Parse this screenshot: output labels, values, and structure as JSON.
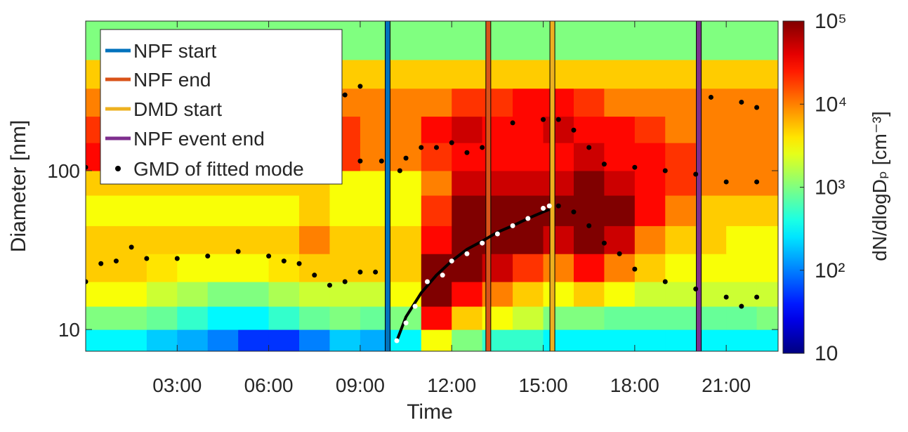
{
  "chart_data": {
    "type": "heatmap",
    "x_label": "Time",
    "y_label": "Diameter [nm]",
    "xlim": [
      0,
      22.7
    ],
    "xticks": [
      {
        "value": 3,
        "label": "03:00"
      },
      {
        "value": 6,
        "label": "06:00"
      },
      {
        "value": 9,
        "label": "09:00"
      },
      {
        "value": 12,
        "label": "12:00"
      },
      {
        "value": 15,
        "label": "15:00"
      },
      {
        "value": 18,
        "label": "18:00"
      },
      {
        "value": 21,
        "label": "21:00"
      }
    ],
    "ylim": [
      7.3,
      875
    ],
    "yscale": "log",
    "yticks": [
      10,
      100
    ],
    "colormap": "jet",
    "colorbar": {
      "label": "dN/dlogDₚ [cm⁻³]",
      "lim": [
        10,
        100000
      ],
      "scale": "log",
      "ticks": [
        10,
        {
          "value": 100,
          "label": "10²"
        },
        {
          "value": 1000,
          "label": "10³"
        },
        {
          "value": 10000,
          "label": "10⁴"
        },
        {
          "value": 100000,
          "label": "10⁵"
        }
      ]
    },
    "x_bins": [
      0,
      1,
      2,
      3,
      4,
      5,
      6,
      7,
      8,
      9,
      10,
      11,
      12,
      13,
      14,
      15,
      16,
      17,
      18,
      19,
      20,
      21,
      22,
      23
    ],
    "y_bins": [
      7.3,
      10,
      14,
      20,
      30,
      45,
      70,
      100,
      150,
      220,
      330,
      500,
      875
    ],
    "z": [
      [
        300,
        300,
        200,
        150,
        100,
        50,
        50,
        100,
        200,
        150,
        300,
        3000,
        1000,
        500,
        500,
        300,
        300,
        300,
        300,
        300,
        300,
        300,
        300
      ],
      [
        1000,
        1000,
        800,
        500,
        300,
        300,
        500,
        800,
        1000,
        800,
        1000,
        30000,
        5000,
        3000,
        2000,
        1000,
        1000,
        800,
        800,
        800,
        800,
        800,
        1000
      ],
      [
        3000,
        3000,
        2000,
        1500,
        1000,
        1000,
        1500,
        2000,
        2000,
        2000,
        3000,
        100000,
        30000,
        10000,
        5000,
        3000,
        5000,
        3000,
        2000,
        2000,
        2000,
        2000,
        2000
      ],
      [
        5000,
        5000,
        4000,
        3000,
        3000,
        3000,
        4000,
        5000,
        5000,
        5000,
        5000,
        100000,
        100000,
        50000,
        20000,
        10000,
        30000,
        10000,
        5000,
        3000,
        3000,
        3000,
        3000
      ],
      [
        5000,
        5000,
        5000,
        5000,
        5000,
        5000,
        5000,
        10000,
        5000,
        5000,
        5000,
        30000,
        100000,
        100000,
        100000,
        50000,
        100000,
        50000,
        10000,
        5000,
        5000,
        3000,
        3000
      ],
      [
        3000,
        3000,
        3000,
        3000,
        3000,
        3000,
        3000,
        5000,
        3000,
        3000,
        3000,
        20000,
        100000,
        100000,
        100000,
        100000,
        100000,
        100000,
        30000,
        10000,
        5000,
        5000,
        5000
      ],
      [
        5000,
        5000,
        5000,
        5000,
        5000,
        5000,
        5000,
        5000,
        3000,
        3000,
        3000,
        10000,
        50000,
        50000,
        50000,
        50000,
        100000,
        50000,
        30000,
        20000,
        10000,
        10000,
        10000
      ],
      [
        30000,
        20000,
        20000,
        20000,
        20000,
        20000,
        20000,
        20000,
        20000,
        10000,
        10000,
        20000,
        30000,
        30000,
        30000,
        30000,
        50000,
        30000,
        30000,
        20000,
        10000,
        10000,
        10000
      ],
      [
        20000,
        20000,
        20000,
        20000,
        20000,
        20000,
        20000,
        20000,
        20000,
        10000,
        10000,
        30000,
        50000,
        30000,
        30000,
        50000,
        30000,
        30000,
        20000,
        10000,
        10000,
        10000,
        10000
      ],
      [
        10000,
        10000,
        10000,
        10000,
        10000,
        10000,
        10000,
        10000,
        10000,
        10000,
        10000,
        10000,
        20000,
        20000,
        30000,
        30000,
        20000,
        10000,
        10000,
        10000,
        10000,
        10000,
        10000
      ],
      [
        5000,
        5000,
        5000,
        5000,
        5000,
        5000,
        5000,
        5000,
        5000,
        5000,
        5000,
        5000,
        5000,
        5000,
        5000,
        5000,
        5000,
        5000,
        5000,
        5000,
        5000,
        5000,
        5000
      ],
      [
        1000,
        1000,
        1000,
        1000,
        1000,
        1000,
        1000,
        1000,
        1000,
        1000,
        1000,
        1000,
        1000,
        1000,
        1000,
        1000,
        1000,
        1000,
        1000,
        1000,
        1000,
        1000,
        1000
      ]
    ],
    "vlines": [
      {
        "name": "NPF start",
        "color": "#0072bd",
        "x": 9.9
      },
      {
        "name": "NPF end",
        "color": "#d95319",
        "x": 13.2
      },
      {
        "name": "DMD start",
        "color": "#edb120",
        "x": 15.3
      },
      {
        "name": "NPF event end",
        "color": "#7e2f8e",
        "x": 20.1
      }
    ],
    "points": {
      "name": "GMD of fitted mode",
      "color": "#000000",
      "x": [
        0,
        0.5,
        1,
        1.5,
        2,
        3,
        4,
        5,
        6,
        6.5,
        7,
        7.5,
        8,
        8.5,
        9,
        9.5,
        0,
        1,
        2,
        3,
        4,
        5,
        6,
        7,
        8,
        9,
        9.7,
        8.5,
        9,
        10.3,
        10.5,
        11,
        11.5,
        12,
        12.5,
        13,
        14,
        15,
        15.5,
        16,
        16.5,
        17,
        18,
        19,
        20,
        21,
        22,
        20.5,
        21.5,
        22,
        15.5,
        16,
        16.5,
        17,
        17.5,
        18,
        19,
        20,
        21,
        21.5,
        22
      ],
      "y": [
        20,
        26,
        27,
        33,
        28,
        28,
        29,
        31,
        29,
        27,
        26,
        22,
        19,
        20,
        23,
        23,
        105,
        100,
        105,
        105,
        110,
        110,
        110,
        110,
        110,
        115,
        115,
        300,
        340,
        100,
        120,
        140,
        140,
        150,
        130,
        140,
        200,
        210,
        210,
        180,
        140,
        110,
        105,
        100,
        95,
        85,
        85,
        290,
        270,
        250,
        60,
        55,
        45,
        35,
        30,
        24,
        20,
        18,
        16,
        14,
        16
      ]
    },
    "fit_points": {
      "color": "#ffffff",
      "x": [
        10.2,
        10.5,
        10.8,
        11.2,
        11.7,
        12,
        12.5,
        13,
        13.5,
        14,
        14.5,
        15,
        15.2
      ],
      "y": [
        8.5,
        11,
        14,
        20,
        22,
        27,
        30,
        35,
        40,
        45,
        50,
        58,
        60
      ]
    },
    "fit_curve": {
      "color": "#000000",
      "x": [
        10.2,
        10.5,
        11,
        11.5,
        12,
        12.5,
        13,
        13.5,
        14,
        14.5,
        15,
        15.2
      ],
      "y": [
        8.5,
        12,
        17,
        22,
        27,
        32,
        36,
        41,
        45,
        50,
        55,
        57
      ]
    }
  }
}
